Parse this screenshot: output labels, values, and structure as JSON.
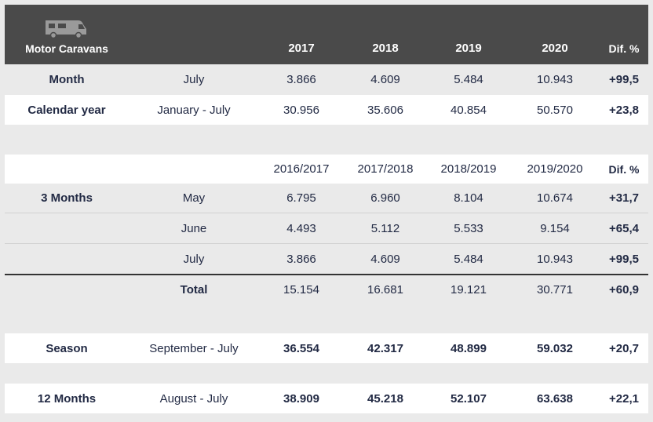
{
  "header": {
    "icon": "motorhome-icon",
    "title": "Motor Caravans",
    "years": [
      "2017",
      "2018",
      "2019",
      "2020"
    ],
    "diff": "Dif. %"
  },
  "month_row": {
    "label": "Month",
    "period": "July",
    "values": [
      "3.866",
      "4.609",
      "5.484",
      "10.943"
    ],
    "diff": "+99,5"
  },
  "calendar_row": {
    "label": "Calendar year",
    "period": "January - July",
    "values": [
      "30.956",
      "35.606",
      "40.854",
      "50.570"
    ],
    "diff": "+23,8"
  },
  "seasons_header": {
    "seasons": [
      "2016/2017",
      "2017/2018",
      "2018/2019",
      "2019/2020"
    ],
    "diff": "Dif. %"
  },
  "three_months": {
    "label": "3 Months",
    "rows": [
      {
        "period": "May",
        "values": [
          "6.795",
          "6.960",
          "8.104",
          "10.674"
        ],
        "diff": "+31,7"
      },
      {
        "period": "June",
        "values": [
          "4.493",
          "5.112",
          "5.533",
          "9.154"
        ],
        "diff": "+65,4"
      },
      {
        "period": "July",
        "values": [
          "3.866",
          "4.609",
          "5.484",
          "10.943"
        ],
        "diff": "+99,5"
      }
    ],
    "total": {
      "label": "Total",
      "values": [
        "15.154",
        "16.681",
        "19.121",
        "30.771"
      ],
      "diff": "+60,9"
    }
  },
  "season_row": {
    "label": "Season",
    "period": "September - July",
    "values": [
      "36.554",
      "42.317",
      "48.899",
      "59.032"
    ],
    "diff": "+20,7"
  },
  "twelve_months_row": {
    "label": "12 Months",
    "period": "August - July",
    "values": [
      "38.909",
      "45.218",
      "52.107",
      "63.638"
    ],
    "diff": "+22,1"
  }
}
